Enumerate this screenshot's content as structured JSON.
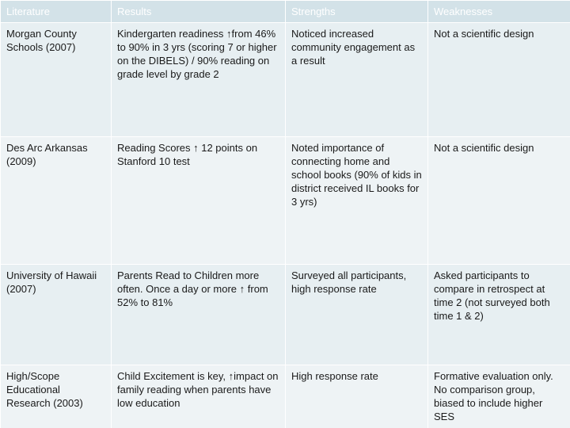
{
  "table": {
    "header": [
      "Literature",
      "Results",
      "Strengths",
      "Weaknesses"
    ],
    "rows": [
      [
        "Morgan County Schools (2007)",
        "Kindergarten readiness ↑from 46% to 90% in 3 yrs  (scoring 7 or higher on the DIBELS) / 90% reading on grade level by grade 2",
        "Noticed increased community engagement as a result",
        "Not a scientific design"
      ],
      [
        "Des Arc Arkansas (2009)",
        "Reading Scores  ↑ 12 points on Stanford 10 test",
        "Noted importance of connecting home and school books (90% of kids in district received IL books for 3 yrs)",
        "Not a scientific design"
      ],
      [
        "University of Hawaii (2007)",
        "Parents Read to Children more often. Once a day or more ↑ from 52% to 81%",
        "Surveyed all participants, high response rate",
        "Asked participants to compare in retrospect at time 2 (not surveyed both time 1 & 2)"
      ],
      [
        "High/Scope Educational Research (2003)",
        "Child Excitement is key, ↑impact on family reading when parents have low education",
        "High response rate",
        "Formative evaluation only. No comparison group, biased to include higher SES"
      ]
    ]
  }
}
